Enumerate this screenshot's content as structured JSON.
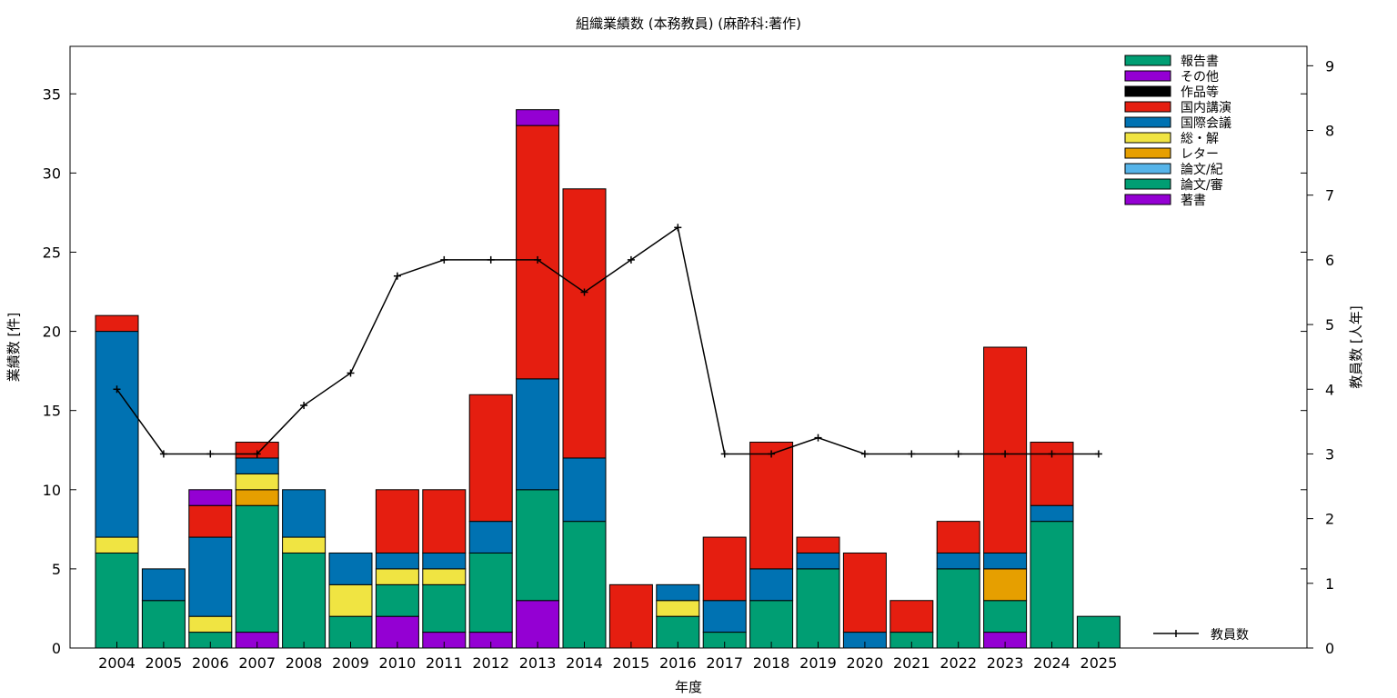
{
  "chart_data": {
    "type": "bar",
    "stacked": true,
    "title": "組織業績数 (本務教員) (麻酔科:著作)",
    "xlabel": "年度",
    "ylabel": "業績数 [件]",
    "y2label": "教員数 [人年]",
    "ylim": [
      0,
      38
    ],
    "y2lim": [
      0,
      9.3
    ],
    "yticks": [
      0,
      5,
      10,
      15,
      20,
      25,
      30,
      35
    ],
    "y2ticks": [
      0,
      1,
      2,
      3,
      4,
      5,
      6,
      7,
      8,
      9
    ],
    "legend_position": "top-right",
    "categories": [
      "2004",
      "2005",
      "2006",
      "2007",
      "2008",
      "2009",
      "2010",
      "2011",
      "2012",
      "2013",
      "2014",
      "2015",
      "2016",
      "2017",
      "2018",
      "2019",
      "2020",
      "2021",
      "2022",
      "2023",
      "2024",
      "2025"
    ],
    "series": [
      {
        "name": "著書",
        "color": "#9400d3",
        "values": [
          0,
          0,
          0,
          1,
          0,
          0,
          2,
          1,
          1,
          3,
          0,
          0,
          0,
          0,
          0,
          0,
          0,
          0,
          0,
          1,
          0,
          0
        ]
      },
      {
        "name": "論文/審",
        "color": "#009e73",
        "values": [
          6,
          3,
          1,
          8,
          6,
          2,
          2,
          3,
          5,
          7,
          8,
          0,
          2,
          1,
          3,
          5,
          0,
          1,
          5,
          2,
          8,
          2
        ]
      },
      {
        "name": "論文/紀",
        "color": "#56b4e9",
        "values": [
          0,
          0,
          0,
          0,
          0,
          0,
          0,
          0,
          0,
          0,
          0,
          0,
          0,
          0,
          0,
          0,
          0,
          0,
          0,
          0,
          0,
          0
        ]
      },
      {
        "name": "レター",
        "color": "#e69f00",
        "values": [
          0,
          0,
          0,
          1,
          0,
          0,
          0,
          0,
          0,
          0,
          0,
          0,
          0,
          0,
          0,
          0,
          0,
          0,
          0,
          2,
          0,
          0
        ]
      },
      {
        "name": "総・解",
        "color": "#f0e442",
        "values": [
          1,
          0,
          1,
          1,
          1,
          2,
          1,
          1,
          0,
          0,
          0,
          0,
          1,
          0,
          0,
          0,
          0,
          0,
          0,
          0,
          0,
          0
        ]
      },
      {
        "name": "国際会議",
        "color": "#0072b2",
        "values": [
          13,
          2,
          5,
          1,
          3,
          2,
          1,
          1,
          2,
          7,
          4,
          0,
          1,
          2,
          2,
          1,
          1,
          0,
          1,
          1,
          1,
          0
        ]
      },
      {
        "name": "国内講演",
        "color": "#e51e10",
        "values": [
          1,
          0,
          2,
          1,
          0,
          0,
          4,
          4,
          8,
          16,
          17,
          4,
          0,
          4,
          8,
          1,
          5,
          2,
          2,
          13,
          4,
          0
        ]
      },
      {
        "name": "作品等",
        "color": "#000000",
        "values": [
          0,
          0,
          0,
          0,
          0,
          0,
          0,
          0,
          0,
          0,
          0,
          0,
          0,
          0,
          0,
          0,
          0,
          0,
          0,
          0,
          0,
          0
        ]
      },
      {
        "name": "その他",
        "color": "#9400d3",
        "values": [
          0,
          0,
          1,
          0,
          0,
          0,
          0,
          0,
          0,
          1,
          0,
          0,
          0,
          0,
          0,
          0,
          0,
          0,
          0,
          0,
          0,
          0
        ]
      },
      {
        "name": "報告書",
        "color": "#009e73",
        "values": [
          0,
          0,
          0,
          0,
          0,
          0,
          0,
          0,
          0,
          0,
          0,
          0,
          0,
          0,
          0,
          0,
          0,
          0,
          0,
          0,
          0,
          0
        ]
      }
    ],
    "line": {
      "name": "教員数",
      "axis": "y2",
      "color": "#000000",
      "values": [
        4,
        3,
        3,
        3,
        3.75,
        4.25,
        5.75,
        6,
        6,
        6,
        5.5,
        6,
        6.5,
        3,
        3,
        3.25,
        3,
        3,
        3,
        3,
        3,
        3
      ]
    }
  }
}
